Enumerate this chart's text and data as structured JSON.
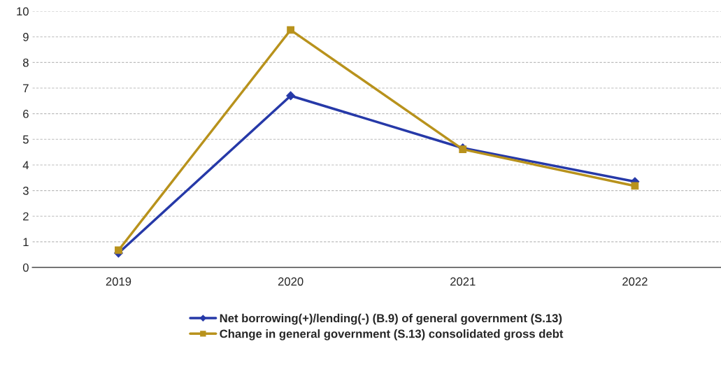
{
  "chart_data": {
    "type": "line",
    "categories": [
      "2019",
      "2020",
      "2021",
      "2022"
    ],
    "series": [
      {
        "name": "Net borrowing(+)/lending(-) (B.9) of general government (S.13)",
        "color": "#2639a8",
        "marker": "diamond",
        "values": [
          0.56,
          6.7,
          4.66,
          3.35
        ]
      },
      {
        "name": "Change in general government (S.13) consolidated gross debt",
        "color": "#b8921c",
        "marker": "square",
        "values": [
          0.67,
          9.27,
          4.61,
          3.18
        ]
      }
    ],
    "ylim": [
      0,
      10
    ],
    "yticks": [
      0,
      1,
      2,
      3,
      4,
      5,
      6,
      7,
      8,
      9,
      10
    ],
    "grid": "y",
    "legend": "bottom",
    "line_style": "solid"
  }
}
